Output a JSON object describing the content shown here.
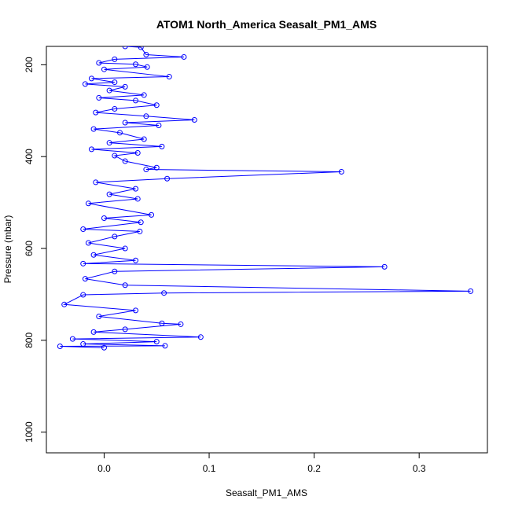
{
  "chart_data": {
    "type": "line",
    "title": "ATOM1 North_America Seasalt_PM1_AMS",
    "xlabel": "Seasalt_PM1_AMS",
    "ylabel": "Pressure (mbar)",
    "xlim": [
      -0.055,
      0.365
    ],
    "ylim": [
      1045,
      160
    ],
    "y_reversed": true,
    "x_ticks": [
      0.0,
      0.1,
      0.2,
      0.3
    ],
    "x_tick_labels": [
      "0.0",
      "0.1",
      "0.2",
      "0.3"
    ],
    "y_ticks": [
      200,
      400,
      600,
      800,
      1000
    ],
    "y_tick_labels": [
      "200",
      "400",
      "600",
      "800",
      "1000"
    ],
    "grid": false,
    "legend": "none",
    "series_color": "#0000ff",
    "marker": "open-circle",
    "series": [
      {
        "points": [
          [
            0.02,
            160
          ],
          [
            0.035,
            162
          ],
          [
            0.04,
            178
          ],
          [
            0.076,
            183
          ],
          [
            0.01,
            188
          ],
          [
            -0.005,
            196
          ],
          [
            0.03,
            199
          ],
          [
            0.041,
            205
          ],
          [
            0.0,
            210
          ],
          [
            0.062,
            226
          ],
          [
            -0.012,
            230
          ],
          [
            0.01,
            238
          ],
          [
            -0.018,
            242
          ],
          [
            0.02,
            248
          ],
          [
            0.005,
            256
          ],
          [
            0.038,
            266
          ],
          [
            -0.005,
            272
          ],
          [
            0.03,
            278
          ],
          [
            0.05,
            288
          ],
          [
            0.01,
            296
          ],
          [
            -0.008,
            304
          ],
          [
            0.04,
            312
          ],
          [
            0.086,
            320
          ],
          [
            0.02,
            326
          ],
          [
            0.052,
            332
          ],
          [
            -0.01,
            340
          ],
          [
            0.015,
            348
          ],
          [
            0.038,
            362
          ],
          [
            0.005,
            370
          ],
          [
            0.055,
            378
          ],
          [
            -0.012,
            384
          ],
          [
            0.032,
            392
          ],
          [
            0.01,
            398
          ],
          [
            0.02,
            410
          ],
          [
            0.05,
            424
          ],
          [
            0.04,
            428
          ],
          [
            0.226,
            433
          ],
          [
            0.06,
            448
          ],
          [
            -0.008,
            456
          ],
          [
            0.03,
            470
          ],
          [
            0.005,
            482
          ],
          [
            0.032,
            492
          ],
          [
            -0.015,
            502
          ],
          [
            0.045,
            527
          ],
          [
            0.0,
            534
          ],
          [
            0.035,
            543
          ],
          [
            -0.02,
            558
          ],
          [
            0.034,
            563
          ],
          [
            0.01,
            574
          ],
          [
            -0.015,
            588
          ],
          [
            0.02,
            600
          ],
          [
            -0.01,
            614
          ],
          [
            0.03,
            626
          ],
          [
            -0.02,
            633
          ],
          [
            0.267,
            640
          ],
          [
            0.01,
            650
          ],
          [
            -0.018,
            666
          ],
          [
            0.02,
            680
          ],
          [
            0.349,
            693
          ],
          [
            0.057,
            697
          ],
          [
            -0.02,
            701
          ],
          [
            -0.038,
            722
          ],
          [
            0.03,
            735
          ],
          [
            -0.005,
            748
          ],
          [
            0.055,
            763
          ],
          [
            0.073,
            765
          ],
          [
            0.02,
            776
          ],
          [
            -0.01,
            782
          ],
          [
            0.092,
            793
          ],
          [
            -0.03,
            797
          ],
          [
            0.05,
            803
          ],
          [
            -0.02,
            808
          ],
          [
            0.058,
            812
          ],
          [
            -0.042,
            813
          ],
          [
            0.0,
            816
          ]
        ]
      }
    ]
  }
}
